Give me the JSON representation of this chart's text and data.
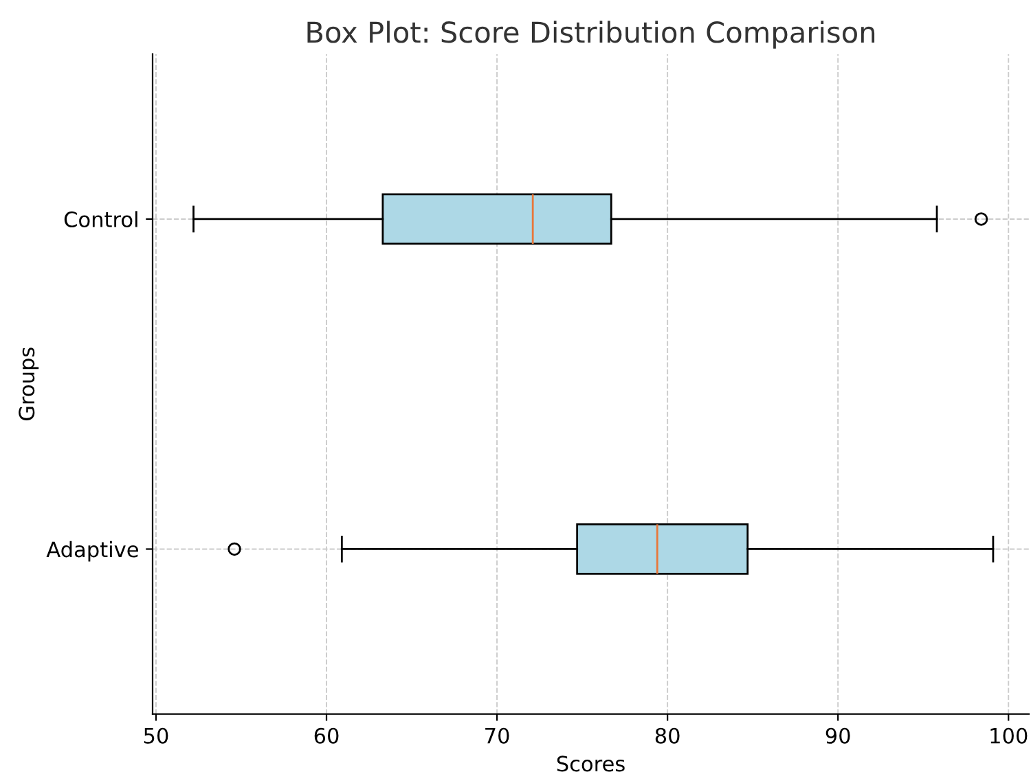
{
  "chart_data": {
    "type": "box",
    "orientation": "horizontal",
    "title": "Box Plot: Score Distribution Comparison",
    "xlabel": "Scores",
    "ylabel": "Groups",
    "categories": [
      "Control",
      "Adaptive"
    ],
    "series": [
      {
        "color": "#add8e6",
        "boxes": [
          {
            "low": 52.2,
            "q1": 63.3,
            "median": 72.1,
            "q3": 76.7,
            "high": 95.8,
            "outliers": [
              98.4
            ]
          },
          {
            "low": 60.9,
            "q1": 74.7,
            "median": 79.4,
            "q3": 84.7,
            "high": 99.1,
            "outliers": [
              54.6
            ]
          }
        ]
      }
    ],
    "xlim": [
      49.8,
      101.2
    ],
    "xticks": [
      50,
      60,
      70,
      80,
      90,
      100
    ],
    "grid": true
  }
}
